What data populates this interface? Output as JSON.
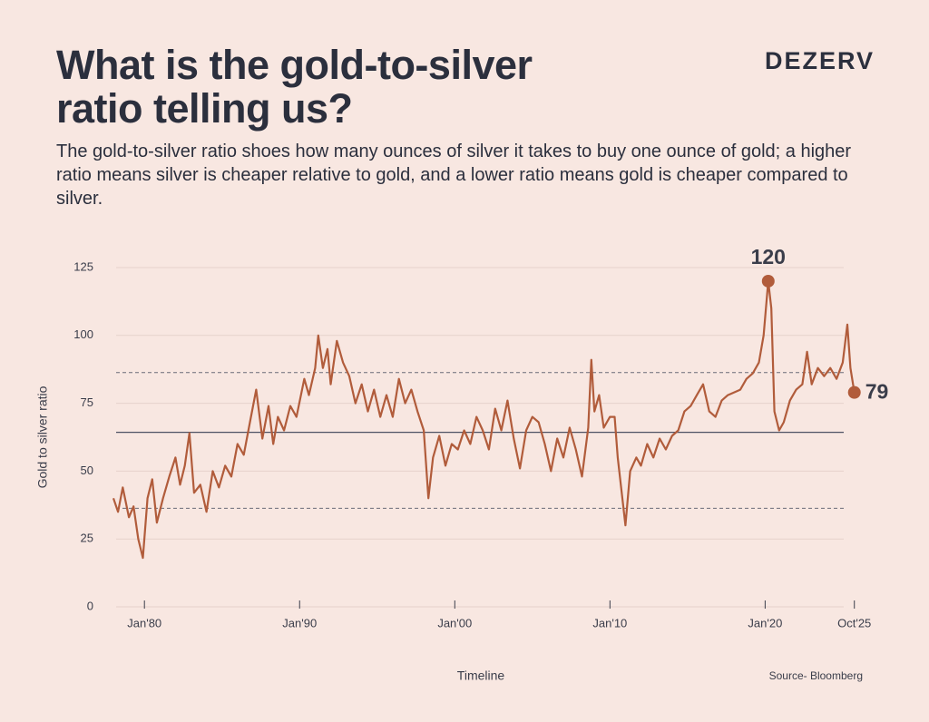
{
  "chart_data": {
    "type": "line",
    "title": "What is the gold-to-silver ratio telling us?",
    "subtitle": "The gold-to-silver ratio shoes how many ounces of silver it takes to buy one ounce of gold; a higher ratio means silver is cheaper relative to gold, and a lower ratio means gold is cheaper compared to silver.",
    "brand": "DEZERV",
    "y_label": "Gold to silver ratio",
    "x_label": "Timeline",
    "source": "Source- Bloomberg",
    "color": "#b15c3b",
    "x": [
      1978.0,
      1978.3,
      1978.6,
      1979.0,
      1979.3,
      1979.6,
      1979.9,
      1980.2,
      1980.5,
      1980.8,
      1981.2,
      1981.6,
      1982.0,
      1982.3,
      1982.6,
      1982.9,
      1983.2,
      1983.6,
      1984.0,
      1984.4,
      1984.8,
      1985.2,
      1985.6,
      1986.0,
      1986.4,
      1986.8,
      1987.2,
      1987.6,
      1988.0,
      1988.3,
      1988.6,
      1989.0,
      1989.4,
      1989.8,
      1990.3,
      1990.6,
      1991.0,
      1991.2,
      1991.5,
      1991.8,
      1992.0,
      1992.4,
      1992.8,
      1993.2,
      1993.6,
      1994.0,
      1994.4,
      1994.8,
      1995.2,
      1995.6,
      1996.0,
      1996.4,
      1996.8,
      1997.2,
      1997.6,
      1998.0,
      1998.3,
      1998.6,
      1999.0,
      1999.4,
      1999.8,
      2000.2,
      2000.6,
      2001.0,
      2001.4,
      2001.8,
      2002.2,
      2002.6,
      2003.0,
      2003.4,
      2003.8,
      2004.2,
      2004.6,
      2005.0,
      2005.4,
      2005.8,
      2006.2,
      2006.6,
      2007.0,
      2007.4,
      2007.8,
      2008.2,
      2008.6,
      2008.8,
      2009.0,
      2009.3,
      2009.6,
      2010.0,
      2010.3,
      2010.5,
      2010.7,
      2011.0,
      2011.3,
      2011.7,
      2012.0,
      2012.4,
      2012.8,
      2013.2,
      2013.6,
      2014.0,
      2014.4,
      2014.8,
      2015.2,
      2015.6,
      2016.0,
      2016.4,
      2016.8,
      2017.2,
      2017.6,
      2018.0,
      2018.4,
      2018.8,
      2019.2,
      2019.6,
      2019.9,
      2020.2,
      2020.4,
      2020.6,
      2020.9,
      2021.2,
      2021.6,
      2022.0,
      2022.4,
      2022.7,
      2023.0,
      2023.4,
      2023.8,
      2024.2,
      2024.6,
      2025.0,
      2025.3,
      2025.5,
      2025.75
    ],
    "values": [
      40,
      35,
      44,
      33,
      37,
      25,
      18,
      40,
      47,
      31,
      40,
      48,
      55,
      45,
      52,
      64,
      42,
      45,
      35,
      50,
      44,
      52,
      48,
      60,
      56,
      68,
      80,
      62,
      74,
      60,
      70,
      65,
      74,
      70,
      84,
      78,
      88,
      100,
      88,
      95,
      82,
      98,
      90,
      85,
      75,
      82,
      72,
      80,
      70,
      78,
      70,
      84,
      75,
      80,
      72,
      65,
      40,
      55,
      63,
      52,
      60,
      58,
      65,
      60,
      70,
      65,
      58,
      73,
      65,
      76,
      62,
      51,
      65,
      70,
      68,
      60,
      50,
      62,
      55,
      66,
      58,
      48,
      66,
      91,
      72,
      78,
      66,
      70,
      70,
      55,
      45,
      30,
      50,
      55,
      52,
      60,
      55,
      62,
      58,
      63,
      65,
      72,
      74,
      78,
      82,
      72,
      70,
      76,
      78,
      79,
      80,
      84,
      86,
      90,
      100,
      120,
      110,
      72,
      65,
      68,
      76,
      80,
      82,
      94,
      82,
      88,
      85,
      88,
      84,
      90,
      104,
      88,
      79
    ],
    "xlim": [
      1978,
      2026
    ],
    "xticks": [
      {
        "value": 1980,
        "label": "Jan'80"
      },
      {
        "value": 1990,
        "label": "Jan'90"
      },
      {
        "value": 2000,
        "label": "Jan'00"
      },
      {
        "value": 2010,
        "label": "Jan'10"
      },
      {
        "value": 2020,
        "label": "Jan'20"
      },
      {
        "value": 2025.75,
        "label": "Oct'25"
      }
    ],
    "ylim": [
      0,
      125
    ],
    "yticks": [
      0,
      25,
      50,
      75,
      100,
      125
    ],
    "grid": true,
    "reference_lines": [
      {
        "value": 64.3,
        "dashed": false
      },
      {
        "value": 86.3,
        "dashed": true
      },
      {
        "value": 36.3,
        "dashed": true
      }
    ],
    "annotations": [
      {
        "x": 2020.2,
        "value": 120
      },
      {
        "x": 2025.75,
        "value": 79
      }
    ]
  }
}
